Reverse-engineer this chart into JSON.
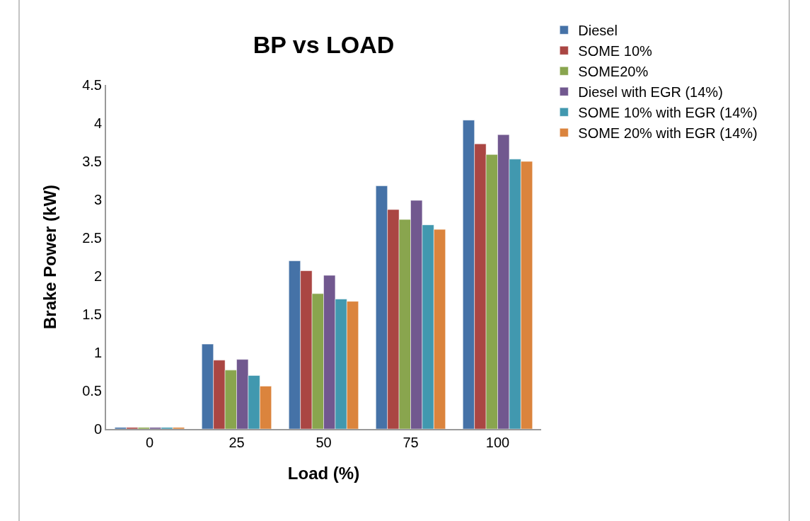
{
  "chart_data": {
    "type": "bar",
    "title": "BP vs LOAD",
    "xlabel": "Load (%)",
    "ylabel": "Brake Power (kW)",
    "categories": [
      "0",
      "25",
      "50",
      "75",
      "100"
    ],
    "series": [
      {
        "name": "Diesel",
        "color": "#4572a7",
        "values": [
          0.02,
          1.11,
          2.2,
          3.18,
          4.04
        ]
      },
      {
        "name": "SOME 10%",
        "color": "#aa4643",
        "values": [
          0.02,
          0.9,
          2.07,
          2.87,
          3.73
        ]
      },
      {
        "name": "SOME20%",
        "color": "#89a54e",
        "values": [
          0.02,
          0.77,
          1.77,
          2.74,
          3.59
        ]
      },
      {
        "name": "Diesel with EGR (14%)",
        "color": "#71588f",
        "values": [
          0.02,
          0.91,
          2.01,
          2.99,
          3.85
        ]
      },
      {
        "name": "SOME 10% with EGR (14%)",
        "color": "#4198af",
        "values": [
          0.02,
          0.7,
          1.7,
          2.67,
          3.53
        ]
      },
      {
        "name": "SOME 20% with EGR (14%)",
        "color": "#db843d",
        "values": [
          0.02,
          0.56,
          1.67,
          2.61,
          3.5
        ]
      }
    ],
    "ylim": [
      0,
      4.5
    ],
    "yticks": [
      0,
      0.5,
      1,
      1.5,
      2,
      2.5,
      3,
      3.5,
      4,
      4.5
    ],
    "legend": "top right"
  }
}
